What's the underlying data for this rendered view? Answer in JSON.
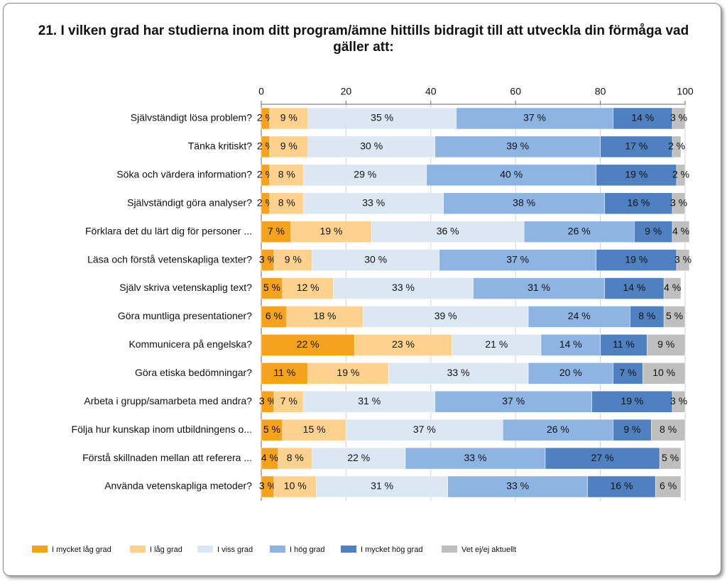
{
  "chart_data": {
    "type": "stacked-bar-horizontal",
    "title": "21. I vilken grad har studierna inom ditt program/ämne hittills bidragit till att utveckla din förmåga vad gäller att:",
    "categories": [
      "Självständigt lösa problem?",
      "Tänka kritiskt?",
      "Söka och värdera information?",
      "Självständigt göra analyser?",
      "Förklara det du lärt dig för personer ...",
      "Läsa och förstå vetenskapliga texter?",
      "Själv skriva vetenskaplig text?",
      "Göra muntliga presentationer?",
      "Kommunicera på engelska?",
      "Göra etiska bedömningar?",
      "Arbeta i grupp/samarbeta med andra?",
      "Följa hur kunskap inom utbildningens o...",
      "Förstå skillnaden mellan att referera ...",
      "Använda vetenskapliga metoder?"
    ],
    "series": [
      {
        "name": "I mycket låg grad",
        "color": "#f4a21f",
        "values": [
          2,
          2,
          2,
          2,
          7,
          3,
          5,
          6,
          22,
          11,
          3,
          5,
          4,
          3
        ],
        "value_labels": [
          "2 %",
          "2 %",
          "2 %",
          "2 %",
          "7 %",
          "3 %",
          "5 %",
          "6 %",
          "22 %",
          "11 %",
          "3 %",
          "5 %",
          "4 %",
          "3 %"
        ]
      },
      {
        "name": "I låg grad",
        "color": "#fdd28e",
        "values": [
          9,
          9,
          8,
          8,
          19,
          9,
          12,
          18,
          23,
          19,
          7,
          15,
          8,
          10
        ],
        "value_labels": [
          "9 %",
          "9 %",
          "8 %",
          "8 %",
          "19 %",
          "9 %",
          "12 %",
          "18 %",
          "23 %",
          "19 %",
          "7 %",
          "15 %",
          "8 %",
          "10 %"
        ]
      },
      {
        "name": "I viss grad",
        "color": "#dce7f4",
        "values": [
          35,
          30,
          29,
          33,
          36,
          30,
          33,
          39,
          21,
          33,
          31,
          37,
          22,
          31
        ],
        "value_labels": [
          "35 %",
          "30 %",
          "29 %",
          "33 %",
          "36 %",
          "30 %",
          "33 %",
          "39 %",
          "21 %",
          "33 %",
          "31 %",
          "37 %",
          "22 %",
          "31 %"
        ]
      },
      {
        "name": "I hög grad",
        "color": "#8eb4e3",
        "values": [
          37,
          39,
          40,
          38,
          26,
          37,
          31,
          24,
          14,
          20,
          37,
          26,
          33,
          33
        ],
        "value_labels": [
          "37 %",
          "39 %",
          "40 %",
          "38 %",
          "26 %",
          "37 %",
          "31 %",
          "24 %",
          "14 %",
          "20 %",
          "37 %",
          "26 %",
          "33 %",
          "33 %"
        ]
      },
      {
        "name": "I mycket hög grad",
        "color": "#4f81c0",
        "values": [
          14,
          17,
          19,
          16,
          9,
          19,
          14,
          8,
          11,
          7,
          19,
          9,
          27,
          16
        ],
        "value_labels": [
          "14 %",
          "17 %",
          "19 %",
          "16 %",
          "9 %",
          "19 %",
          "14 %",
          "8 %",
          "11 %",
          "7 %",
          "19 %",
          "9 %",
          "27 %",
          "16 %"
        ]
      },
      {
        "name": "Vet ej/ej aktuellt",
        "color": "#bfbfbf",
        "values": [
          3,
          2,
          2,
          3,
          4,
          3,
          4,
          5,
          9,
          10,
          3,
          8,
          5,
          6
        ],
        "value_labels": [
          "3 %",
          "2 %",
          "2 %",
          "3 %",
          "4 %",
          "3 %",
          "4 %",
          "5 %",
          "9 %",
          "10 %",
          "3 %",
          "8 %",
          "5 %",
          "6 %"
        ]
      }
    ],
    "xlim": [
      0,
      100
    ],
    "xticks": [
      0,
      20,
      40,
      60,
      80,
      100
    ],
    "grid": true
  }
}
